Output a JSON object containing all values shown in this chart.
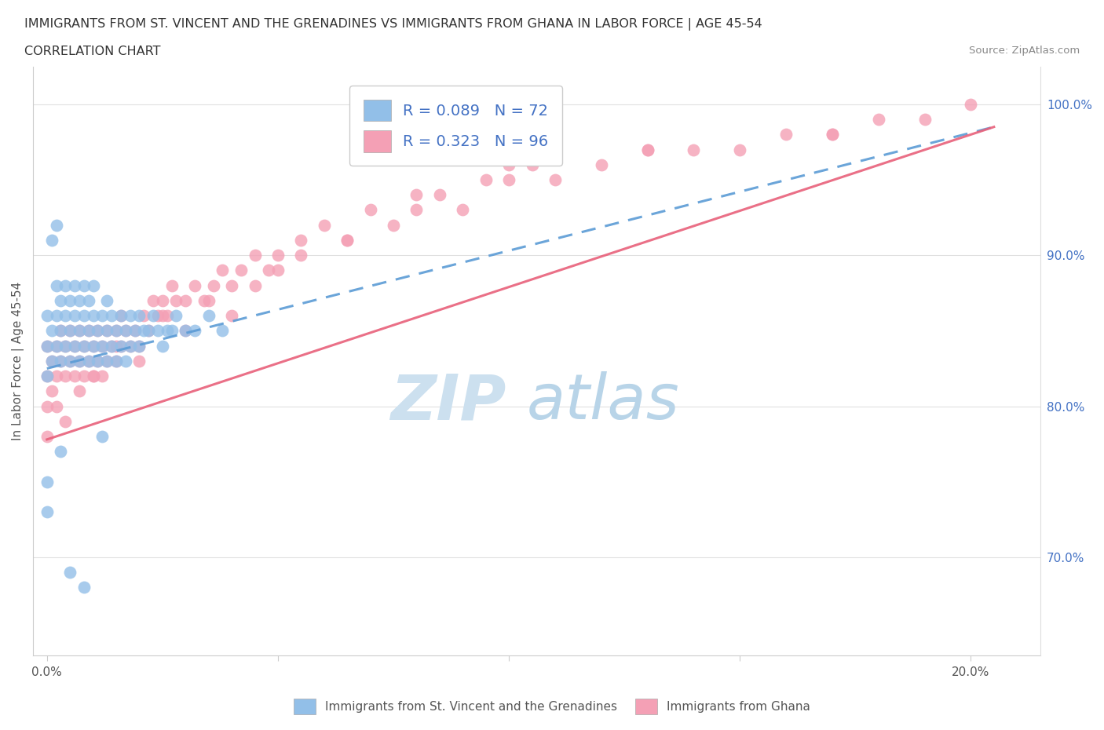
{
  "title_line1": "IMMIGRANTS FROM ST. VINCENT AND THE GRENADINES VS IMMIGRANTS FROM GHANA IN LABOR FORCE | AGE 45-54",
  "title_line2": "CORRELATION CHART",
  "source": "Source: ZipAtlas.com",
  "ylabel": "In Labor Force | Age 45-54",
  "xlim": [
    -0.003,
    0.215
  ],
  "ylim": [
    0.635,
    1.025
  ],
  "xticks": [
    0.0,
    0.05,
    0.1,
    0.15,
    0.2
  ],
  "xtick_labels": [
    "0.0%",
    "",
    "",
    "",
    "20.0%"
  ],
  "ytick_vals_right": [
    0.7,
    0.8,
    0.9,
    1.0
  ],
  "ytick_labels_right": [
    "70.0%",
    "80.0%",
    "90.0%",
    "100.0%"
  ],
  "color_blue": "#92bfe8",
  "color_pink": "#f4a0b5",
  "line_blue_color": "#5b9bd5",
  "line_pink_color": "#e8607a",
  "watermark_zip_color": "#cce0ef",
  "watermark_atlas_color": "#b8d4e8",
  "blue_x": [
    0.0,
    0.0,
    0.0,
    0.001,
    0.001,
    0.002,
    0.002,
    0.002,
    0.003,
    0.003,
    0.003,
    0.004,
    0.004,
    0.004,
    0.005,
    0.005,
    0.005,
    0.006,
    0.006,
    0.006,
    0.007,
    0.007,
    0.007,
    0.008,
    0.008,
    0.008,
    0.009,
    0.009,
    0.009,
    0.01,
    0.01,
    0.01,
    0.011,
    0.011,
    0.012,
    0.012,
    0.013,
    0.013,
    0.013,
    0.014,
    0.014,
    0.015,
    0.015,
    0.016,
    0.016,
    0.017,
    0.017,
    0.018,
    0.018,
    0.019,
    0.02,
    0.02,
    0.021,
    0.022,
    0.023,
    0.024,
    0.025,
    0.026,
    0.027,
    0.028,
    0.03,
    0.032,
    0.035,
    0.038,
    0.0,
    0.0,
    0.001,
    0.002,
    0.003,
    0.005,
    0.008,
    0.012
  ],
  "blue_y": [
    0.82,
    0.84,
    0.86,
    0.83,
    0.85,
    0.84,
    0.86,
    0.88,
    0.83,
    0.85,
    0.87,
    0.84,
    0.86,
    0.88,
    0.83,
    0.85,
    0.87,
    0.84,
    0.86,
    0.88,
    0.83,
    0.85,
    0.87,
    0.84,
    0.86,
    0.88,
    0.83,
    0.85,
    0.87,
    0.84,
    0.86,
    0.88,
    0.83,
    0.85,
    0.84,
    0.86,
    0.83,
    0.85,
    0.87,
    0.84,
    0.86,
    0.83,
    0.85,
    0.84,
    0.86,
    0.83,
    0.85,
    0.84,
    0.86,
    0.85,
    0.84,
    0.86,
    0.85,
    0.85,
    0.86,
    0.85,
    0.84,
    0.85,
    0.85,
    0.86,
    0.85,
    0.85,
    0.86,
    0.85,
    0.73,
    0.75,
    0.91,
    0.92,
    0.77,
    0.69,
    0.68,
    0.78
  ],
  "pink_x": [
    0.0,
    0.0,
    0.0,
    0.001,
    0.001,
    0.002,
    0.002,
    0.003,
    0.003,
    0.004,
    0.004,
    0.005,
    0.005,
    0.006,
    0.006,
    0.007,
    0.007,
    0.008,
    0.008,
    0.009,
    0.009,
    0.01,
    0.01,
    0.011,
    0.011,
    0.012,
    0.012,
    0.013,
    0.013,
    0.014,
    0.015,
    0.015,
    0.016,
    0.016,
    0.017,
    0.018,
    0.019,
    0.02,
    0.021,
    0.022,
    0.023,
    0.024,
    0.025,
    0.026,
    0.027,
    0.028,
    0.03,
    0.032,
    0.034,
    0.036,
    0.038,
    0.04,
    0.042,
    0.045,
    0.048,
    0.05,
    0.055,
    0.06,
    0.065,
    0.07,
    0.075,
    0.08,
    0.085,
    0.09,
    0.095,
    0.1,
    0.105,
    0.11,
    0.12,
    0.13,
    0.14,
    0.15,
    0.16,
    0.17,
    0.18,
    0.19,
    0.2,
    0.0,
    0.002,
    0.004,
    0.007,
    0.01,
    0.015,
    0.02,
    0.025,
    0.03,
    0.035,
    0.04,
    0.045,
    0.05,
    0.055,
    0.065,
    0.08,
    0.1,
    0.13,
    0.17
  ],
  "pink_y": [
    0.82,
    0.84,
    0.8,
    0.83,
    0.81,
    0.82,
    0.84,
    0.83,
    0.85,
    0.82,
    0.84,
    0.83,
    0.85,
    0.82,
    0.84,
    0.83,
    0.85,
    0.82,
    0.84,
    0.83,
    0.85,
    0.82,
    0.84,
    0.83,
    0.85,
    0.82,
    0.84,
    0.83,
    0.85,
    0.84,
    0.83,
    0.85,
    0.84,
    0.86,
    0.85,
    0.84,
    0.85,
    0.84,
    0.86,
    0.85,
    0.87,
    0.86,
    0.87,
    0.86,
    0.88,
    0.87,
    0.87,
    0.88,
    0.87,
    0.88,
    0.89,
    0.88,
    0.89,
    0.9,
    0.89,
    0.9,
    0.91,
    0.92,
    0.91,
    0.93,
    0.92,
    0.93,
    0.94,
    0.93,
    0.95,
    0.95,
    0.96,
    0.95,
    0.96,
    0.97,
    0.97,
    0.97,
    0.98,
    0.98,
    0.99,
    0.99,
    1.0,
    0.78,
    0.8,
    0.79,
    0.81,
    0.82,
    0.84,
    0.83,
    0.86,
    0.85,
    0.87,
    0.86,
    0.88,
    0.89,
    0.9,
    0.91,
    0.94,
    0.96,
    0.97,
    0.98
  ],
  "blue_line_x0": 0.0,
  "blue_line_x1": 0.205,
  "blue_line_y0": 0.825,
  "blue_line_y1": 0.985,
  "pink_line_x0": 0.0,
  "pink_line_x1": 0.205,
  "pink_line_y0": 0.778,
  "pink_line_y1": 0.985
}
